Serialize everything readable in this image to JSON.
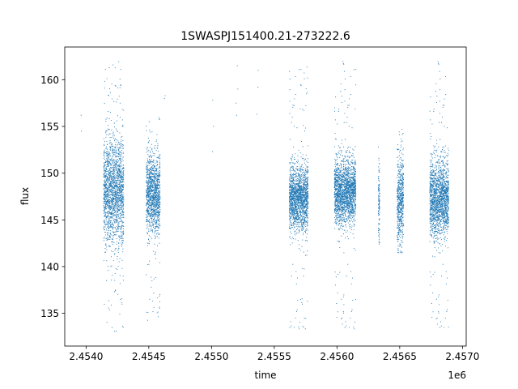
{
  "chart_data": {
    "type": "scatter",
    "title": "1SWASPJ151400.21-273222.6",
    "xlabel": "time",
    "ylabel": "flux",
    "x_offset_label": "1e6",
    "xlim": [
      2453830,
      2457030
    ],
    "ylim": [
      131.5,
      163.5
    ],
    "x_ticks": [
      2454000,
      2454500,
      2455000,
      2455500,
      2456000,
      2456500,
      2457000
    ],
    "x_tick_labels": [
      "2.4540",
      "2.4545",
      "2.4550",
      "2.4555",
      "2.4560",
      "2.4565",
      "2.4570"
    ],
    "y_ticks": [
      135,
      140,
      145,
      150,
      155,
      160
    ],
    "y_tick_labels": [
      "135",
      "140",
      "145",
      "150",
      "155",
      "160"
    ],
    "marker_color": "#1f77b4",
    "grid": false,
    "observing_seasons": [
      {
        "x_start": 2454140,
        "x_end": 2454300,
        "median_flux": 148.0,
        "spread": 2.8,
        "min_flux": 133.0,
        "max_flux": 162.0
      },
      {
        "x_start": 2454480,
        "x_end": 2454590,
        "median_flux": 147.8,
        "spread": 2.0,
        "min_flux": 134.0,
        "max_flux": 156.0
      },
      {
        "x_start": 2455620,
        "x_end": 2455770,
        "median_flux": 147.3,
        "spread": 1.7,
        "min_flux": 133.0,
        "max_flux": 162.0
      },
      {
        "x_start": 2455980,
        "x_end": 2456150,
        "median_flux": 148.0,
        "spread": 1.7,
        "min_flux": 133.0,
        "max_flux": 162.0
      },
      {
        "x_start": 2456330,
        "x_end": 2456340,
        "median_flux": 147.0,
        "spread": 2.2,
        "min_flux": 141.0,
        "max_flux": 154.0
      },
      {
        "x_start": 2456480,
        "x_end": 2456530,
        "median_flux": 147.0,
        "spread": 2.2,
        "min_flux": 141.5,
        "max_flux": 155.0
      },
      {
        "x_start": 2456740,
        "x_end": 2456890,
        "median_flux": 147.3,
        "spread": 2.0,
        "min_flux": 133.0,
        "max_flux": 162.0
      }
    ],
    "sparse_points": [
      {
        "x": 2453960,
        "y": 156.2
      },
      {
        "x": 2453962,
        "y": 154.5
      },
      {
        "x": 2454630,
        "y": 158.3
      },
      {
        "x": 2454625,
        "y": 158.0
      },
      {
        "x": 2455010,
        "y": 157.8
      },
      {
        "x": 2455015,
        "y": 155.0
      },
      {
        "x": 2455008,
        "y": 152.3
      },
      {
        "x": 2455205,
        "y": 161.5
      },
      {
        "x": 2455210,
        "y": 159.0
      },
      {
        "x": 2455195,
        "y": 157.5
      },
      {
        "x": 2455200,
        "y": 156.2
      },
      {
        "x": 2455370,
        "y": 159.2
      },
      {
        "x": 2455372,
        "y": 161.0
      },
      {
        "x": 2455360,
        "y": 156.3
      }
    ]
  }
}
